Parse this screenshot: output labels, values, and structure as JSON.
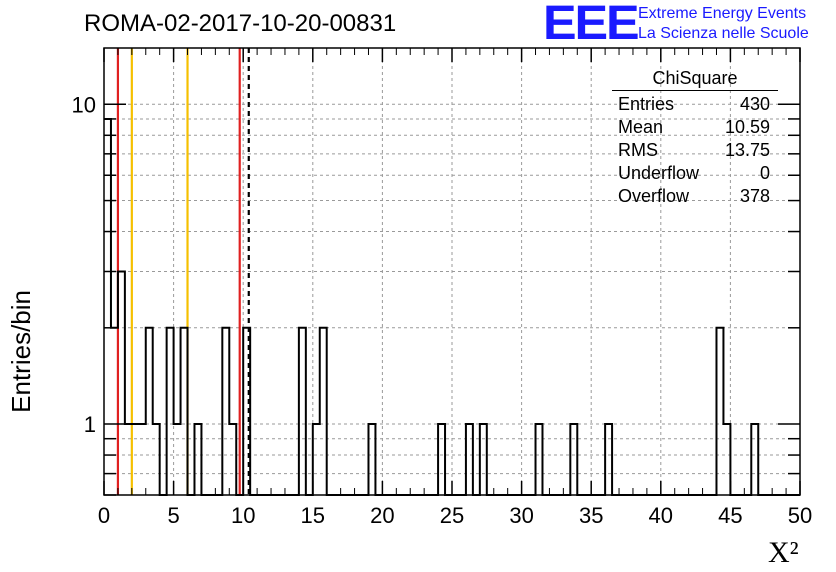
{
  "title": "ROMA-02-2017-10-20-00831",
  "logo": {
    "mark": "EEE",
    "line1": "Extreme Energy Events",
    "line2": "La Scienza nelle Scuole",
    "color": "#1a1aff"
  },
  "chart_data": {
    "type": "bar",
    "subtype": "step-histogram",
    "xlabel": "X²",
    "ylabel": "Entries/bin",
    "xlim": [
      0,
      50
    ],
    "ylim": [
      0.6,
      15
    ],
    "y_scale": "log",
    "grid": true,
    "bin_width": 0.5,
    "x_ticks": [
      0,
      5,
      10,
      15,
      20,
      25,
      30,
      35,
      40,
      45,
      50
    ],
    "y_ticks": [
      1,
      10
    ],
    "bins": [
      {
        "x": 0.0,
        "y": 9
      },
      {
        "x": 0.5,
        "y": 2
      },
      {
        "x": 1.0,
        "y": 3
      },
      {
        "x": 1.5,
        "y": 1
      },
      {
        "x": 2.0,
        "y": 1
      },
      {
        "x": 2.5,
        "y": 1
      },
      {
        "x": 3.0,
        "y": 2
      },
      {
        "x": 3.5,
        "y": 1
      },
      {
        "x": 4.5,
        "y": 2
      },
      {
        "x": 5.0,
        "y": 1
      },
      {
        "x": 5.5,
        "y": 2
      },
      {
        "x": 6.5,
        "y": 1
      },
      {
        "x": 8.5,
        "y": 2
      },
      {
        "x": 9.0,
        "y": 1
      },
      {
        "x": 10.0,
        "y": 2
      },
      {
        "x": 14.0,
        "y": 2
      },
      {
        "x": 15.0,
        "y": 1
      },
      {
        "x": 15.5,
        "y": 2
      },
      {
        "x": 19.0,
        "y": 1
      },
      {
        "x": 24.0,
        "y": 1
      },
      {
        "x": 26.0,
        "y": 1
      },
      {
        "x": 27.0,
        "y": 1
      },
      {
        "x": 31.0,
        "y": 1
      },
      {
        "x": 33.5,
        "y": 1
      },
      {
        "x": 36.0,
        "y": 1
      },
      {
        "x": 44.0,
        "y": 2
      },
      {
        "x": 44.5,
        "y": 1
      },
      {
        "x": 46.5,
        "y": 1
      }
    ],
    "vertical_lines": [
      {
        "x": 1.0,
        "color": "#e02020",
        "style": "solid"
      },
      {
        "x": 2.0,
        "color": "#f5c000",
        "style": "solid"
      },
      {
        "x": 6.0,
        "color": "#f5c000",
        "style": "solid"
      },
      {
        "x": 9.75,
        "color": "#e02020",
        "style": "solid"
      },
      {
        "x": 10.4,
        "color": "#000000",
        "style": "dashed"
      }
    ],
    "stats_box": {
      "title": "ChiSquare",
      "rows": [
        {
          "label": "Entries",
          "value": "430"
        },
        {
          "label": "Mean",
          "value": "10.59"
        },
        {
          "label": "RMS",
          "value": "13.75"
        },
        {
          "label": "Underflow",
          "value": "0"
        },
        {
          "label": "Overflow",
          "value": "378"
        }
      ]
    }
  }
}
